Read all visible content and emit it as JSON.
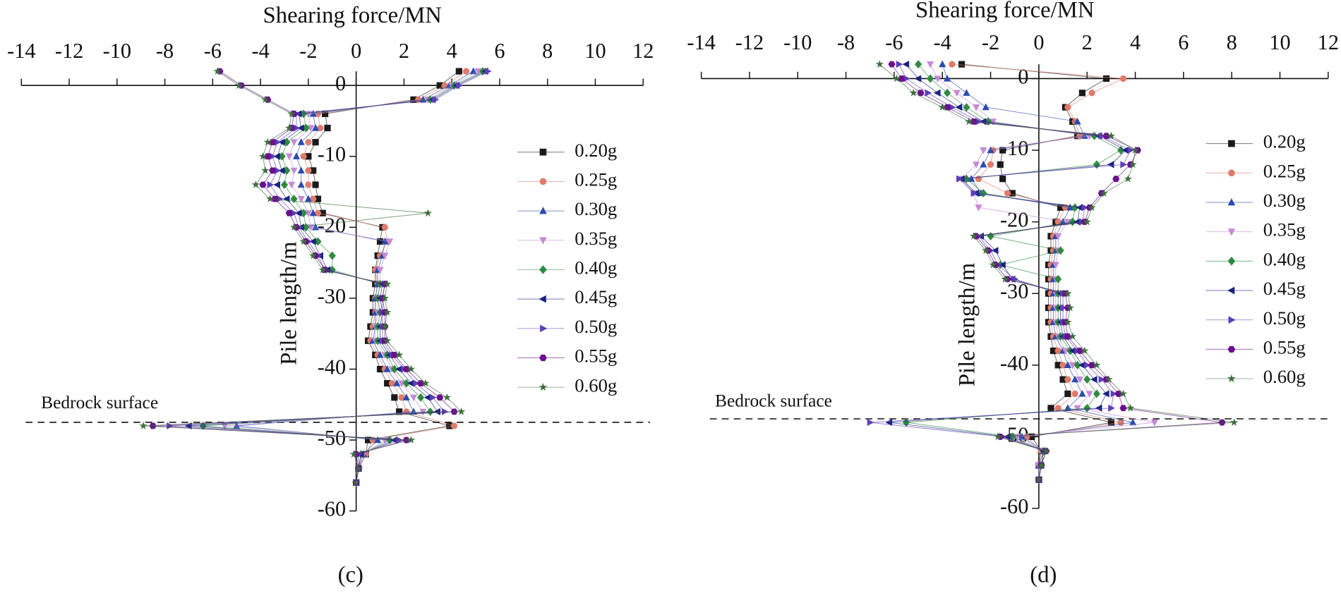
{
  "chart_data": [
    {
      "type": "line",
      "label": "(c)",
      "xlabel": "Shearing force/MN",
      "ylabel": "Pile length/m",
      "xlim": [
        -14,
        12
      ],
      "ylim": [
        -60,
        2
      ],
      "xticks": [
        -14,
        -12,
        -10,
        -8,
        -6,
        -4,
        -2,
        0,
        2,
        4,
        6,
        8,
        10,
        12
      ],
      "yticks": [
        0,
        -10,
        -20,
        -30,
        -40,
        -50,
        -60
      ],
      "annotations": [
        {
          "text": "Bedrock surface",
          "y": -47.5
        }
      ],
      "y": [
        2,
        0,
        -2,
        -4,
        -6,
        -8,
        -10,
        -12,
        -14,
        -16,
        -18,
        -20,
        -22,
        -24,
        -26,
        -28,
        -30,
        -32,
        -34,
        -36,
        -38,
        -40,
        -42,
        -44,
        -46,
        -48,
        -50,
        -52,
        -54,
        -56
      ],
      "series": [
        {
          "name": "0.20g",
          "color": "#1a1a1a",
          "marker": "square",
          "values": [
            4.3,
            3.5,
            2.4,
            -1.3,
            -1.2,
            -1.7,
            -2.0,
            -1.8,
            -1.7,
            -1.6,
            -1.4,
            1.1,
            1.0,
            0.9,
            0.8,
            0.8,
            0.7,
            0.7,
            0.6,
            0.5,
            0.8,
            1.0,
            1.3,
            1.6,
            1.8,
            3.9,
            0.5,
            0.4,
            0.1,
            0.0
          ]
        },
        {
          "name": "0.25g",
          "color": "#e07b6a",
          "marker": "circle",
          "values": [
            4.6,
            3.7,
            2.6,
            -1.6,
            -1.5,
            -2.0,
            -2.2,
            -2.0,
            -2.0,
            -1.8,
            -1.6,
            1.2,
            1.3,
            1.0,
            0.8,
            0.9,
            0.8,
            0.8,
            0.7,
            0.6,
            0.9,
            1.2,
            1.5,
            1.9,
            2.1,
            4.1,
            0.7,
            0.4,
            0.1,
            0.0
          ]
        },
        {
          "name": "0.30g",
          "color": "#2a4bb0",
          "marker": "tri-up",
          "values": [
            4.9,
            3.9,
            2.8,
            -1.8,
            -1.7,
            -2.3,
            -2.5,
            -2.3,
            -2.3,
            -2.0,
            -1.8,
            -1.7,
            1.2,
            1.1,
            0.9,
            0.9,
            0.8,
            0.8,
            0.8,
            0.7,
            1.0,
            1.3,
            1.7,
            2.1,
            2.4,
            -5.0,
            0.9,
            0.3,
            0.1,
            0.0
          ]
        },
        {
          "name": "0.35g",
          "color": "#c58ad6",
          "marker": "tri-down",
          "values": [
            5.1,
            4.0,
            3.0,
            -2.0,
            -1.9,
            -2.6,
            -2.8,
            -2.6,
            -2.7,
            -2.3,
            -2.0,
            -1.9,
            1.4,
            1.2,
            1.0,
            1.0,
            0.9,
            0.9,
            0.8,
            0.8,
            1.2,
            1.5,
            1.9,
            2.4,
            2.8,
            -5.5,
            1.2,
            0.3,
            0.1,
            0.0
          ]
        },
        {
          "name": "0.40g",
          "color": "#2e8b3e",
          "marker": "diamond",
          "values": [
            5.3,
            4.1,
            3.1,
            -2.2,
            -2.1,
            -2.9,
            -3.1,
            -2.9,
            -3.0,
            -2.6,
            -2.2,
            -2.1,
            -1.6,
            -1.0,
            -1.0,
            1.0,
            0.9,
            1.0,
            0.9,
            0.9,
            1.3,
            1.6,
            2.1,
            2.7,
            3.1,
            -6.4,
            1.4,
            0.2,
            0.1,
            0.0
          ]
        },
        {
          "name": "0.45g",
          "color": "#1a237e",
          "marker": "tri-left",
          "values": [
            5.4,
            4.2,
            3.2,
            -2.4,
            -2.3,
            -3.1,
            -3.3,
            -3.1,
            -3.3,
            -2.9,
            -2.4,
            -2.3,
            -1.8,
            -1.5,
            -1.2,
            1.1,
            1.0,
            1.1,
            1.0,
            1.0,
            1.4,
            1.8,
            2.3,
            3.0,
            3.4,
            -7.0,
            1.6,
            0.2,
            0.1,
            0.0
          ]
        },
        {
          "name": "0.50g",
          "color": "#5e3fb5",
          "marker": "tri-right",
          "values": [
            5.5,
            4.3,
            3.3,
            -2.5,
            -2.5,
            -3.3,
            -3.5,
            -3.3,
            -3.6,
            -3.2,
            -2.6,
            -2.4,
            -2.0,
            -1.6,
            -1.3,
            1.2,
            1.1,
            1.1,
            1.1,
            1.1,
            1.5,
            2.0,
            2.5,
            3.2,
            3.7,
            -7.8,
            1.8,
            0.1,
            0.1,
            0.0
          ]
        },
        {
          "name": "0.55g",
          "color": "#6a0f8e",
          "marker": "hexagon",
          "values": [
            -5.7,
            -4.8,
            -3.7,
            -2.6,
            -2.7,
            -3.5,
            -3.7,
            -3.5,
            -3.9,
            -3.4,
            -2.8,
            -2.5,
            -2.1,
            -1.7,
            -1.3,
            1.2,
            1.1,
            1.2,
            1.2,
            1.2,
            1.6,
            2.1,
            2.7,
            3.5,
            4.1,
            -8.5,
            2.1,
            0.0,
            0.1,
            0.0
          ]
        },
        {
          "name": "0.60g",
          "color": "#3c6e3c",
          "marker": "star",
          "values": [
            -5.8,
            -4.9,
            -3.8,
            -2.7,
            -2.8,
            -3.7,
            -3.9,
            -3.8,
            -4.2,
            -3.6,
            3.0,
            -2.6,
            -2.2,
            -1.8,
            -1.4,
            1.3,
            1.2,
            1.3,
            1.2,
            1.3,
            1.8,
            2.3,
            2.9,
            3.8,
            4.4,
            -8.9,
            2.3,
            -0.1,
            0.1,
            0.0
          ]
        }
      ]
    },
    {
      "type": "line",
      "label": "(d)",
      "xlabel": "Shearing force/MN",
      "ylabel": "Pile length/m",
      "xlim": [
        -14,
        12
      ],
      "ylim": [
        -60,
        2
      ],
      "xticks": [
        -14,
        -12,
        -10,
        -8,
        -6,
        -4,
        -2,
        0,
        2,
        4,
        6,
        8,
        10,
        12
      ],
      "yticks": [
        0,
        -10,
        -20,
        -30,
        -40,
        -50,
        -60
      ],
      "annotations": [
        {
          "text": "Bedrock surface",
          "y": -47.5
        }
      ],
      "y": [
        2,
        0,
        -2,
        -4,
        -6,
        -8,
        -10,
        -12,
        -14,
        -16,
        -18,
        -20,
        -22,
        -24,
        -26,
        -28,
        -30,
        -32,
        -34,
        -36,
        -38,
        -40,
        -42,
        -44,
        -46,
        -48,
        -50,
        -52,
        -54,
        -56
      ],
      "series": [
        {
          "name": "0.20g",
          "color": "#1a1a1a",
          "marker": "square",
          "values": [
            -3.2,
            2.8,
            1.8,
            1.1,
            1.4,
            1.6,
            -1.5,
            -1.6,
            -1.5,
            -1.1,
            0.9,
            0.7,
            0.5,
            0.5,
            0.4,
            0.4,
            0.4,
            0.4,
            0.4,
            0.5,
            0.6,
            0.8,
            1.0,
            1.2,
            0.5,
            3.0,
            -0.3,
            0.1,
            0.0,
            0.0
          ]
        },
        {
          "name": "0.25g",
          "color": "#e07b6a",
          "marker": "circle",
          "values": [
            -3.6,
            3.5,
            2.2,
            1.2,
            1.5,
            1.7,
            -1.9,
            -2.0,
            -2.5,
            -1.3,
            1.1,
            0.8,
            0.6,
            0.6,
            0.5,
            0.5,
            0.5,
            0.5,
            0.5,
            0.6,
            0.8,
            1.0,
            1.2,
            1.5,
            0.8,
            3.4,
            -0.5,
            0.1,
            0.0,
            0.0
          ]
        },
        {
          "name": "0.30g",
          "color": "#2a4bb0",
          "marker": "tri-up",
          "values": [
            -4.0,
            -3.8,
            -3.0,
            -2.2,
            1.6,
            1.9,
            -2.0,
            -2.3,
            -2.8,
            -2.4,
            1.3,
            1.0,
            0.7,
            0.7,
            0.6,
            0.6,
            0.6,
            0.6,
            0.6,
            0.7,
            1.0,
            1.2,
            1.5,
            1.8,
            1.2,
            3.9,
            -0.7,
            0.2,
            0.0,
            0.0
          ]
        },
        {
          "name": "0.35g",
          "color": "#c58ad6",
          "marker": "tri-down",
          "values": [
            -4.5,
            -4.2,
            -3.4,
            -2.6,
            -1.9,
            2.1,
            -2.3,
            -2.6,
            -3.2,
            -2.7,
            -2.5,
            1.2,
            0.8,
            0.8,
            0.7,
            0.7,
            0.7,
            0.7,
            0.7,
            0.8,
            1.1,
            1.4,
            1.7,
            2.1,
            1.6,
            4.8,
            -0.9,
            0.2,
            0.0,
            0.0
          ]
        },
        {
          "name": "0.40g",
          "color": "#2e8b3e",
          "marker": "diamond",
          "values": [
            -5.0,
            -4.5,
            -3.8,
            -3.0,
            -2.1,
            2.3,
            3.4,
            2.4,
            -3.0,
            -2.3,
            1.5,
            1.4,
            -2.0,
            0.9,
            -1.6,
            0.8,
            0.8,
            0.8,
            0.8,
            0.9,
            1.3,
            1.6,
            2.0,
            2.4,
            2.0,
            -5.5,
            -1.1,
            0.2,
            0.1,
            0.0
          ]
        },
        {
          "name": "0.45g",
          "color": "#1a237e",
          "marker": "tri-left",
          "values": [
            -5.5,
            -5.0,
            -4.2,
            -3.3,
            -2.3,
            2.5,
            3.6,
            3.0,
            -3.2,
            -2.6,
            1.7,
            1.6,
            -2.4,
            -1.8,
            -1.5,
            -1.1,
            0.9,
            0.9,
            0.9,
            1.0,
            1.4,
            1.8,
            2.3,
            2.8,
            2.5,
            -6.2,
            -1.3,
            0.2,
            0.1,
            0.0
          ]
        },
        {
          "name": "0.50g",
          "color": "#5e3fb5",
          "marker": "tri-right",
          "values": [
            -5.8,
            -5.5,
            -4.6,
            -3.6,
            -2.5,
            2.6,
            3.8,
            3.5,
            -3.3,
            -2.7,
            1.9,
            1.8,
            -2.5,
            -2.0,
            -1.7,
            -1.0,
            1.0,
            1.0,
            1.0,
            1.1,
            1.6,
            2.0,
            2.6,
            3.1,
            3.0,
            -7.0,
            -1.5,
            0.3,
            0.1,
            0.0
          ]
        },
        {
          "name": "0.55g",
          "color": "#6a0f8e",
          "marker": "hexagon",
          "values": [
            -6.1,
            -5.7,
            -4.9,
            -3.8,
            -2.7,
            2.8,
            4.1,
            3.8,
            3.2,
            2.6,
            2.1,
            1.9,
            -2.6,
            -2.1,
            -1.8,
            -1.3,
            1.1,
            1.2,
            1.1,
            1.2,
            1.7,
            2.2,
            2.8,
            3.3,
            3.5,
            7.6,
            -1.6,
            0.3,
            0.1,
            0.0
          ]
        },
        {
          "name": "0.60g",
          "color": "#3c6e3c",
          "marker": "star",
          "values": [
            -6.6,
            -5.9,
            -5.2,
            -4.0,
            -2.9,
            3.0,
            4.0,
            3.9,
            3.7,
            2.7,
            2.2,
            2.0,
            -2.7,
            -2.2,
            -1.9,
            -1.4,
            1.2,
            1.3,
            1.2,
            1.4,
            1.9,
            2.4,
            2.9,
            3.5,
            3.8,
            8.1,
            -1.7,
            0.3,
            0.1,
            0.0
          ]
        }
      ]
    }
  ]
}
